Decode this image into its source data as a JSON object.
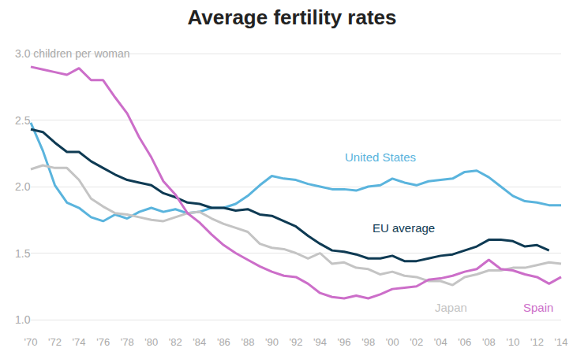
{
  "chart_data": {
    "type": "line",
    "title": "Average fertility rates",
    "categories": [
      "'70",
      null,
      "'72",
      null,
      "'74",
      null,
      "'76",
      null,
      "'78",
      null,
      "'80",
      null,
      "'82",
      null,
      "'84",
      null,
      "'86",
      null,
      "'88",
      null,
      "'90",
      null,
      "'92",
      null,
      "'94",
      null,
      "'96",
      null,
      "'98",
      null,
      "'00",
      null,
      "'02",
      null,
      "'04",
      null,
      "'06",
      null,
      "'08",
      null,
      "'10",
      null,
      "'12",
      null,
      "'14"
    ],
    "series": [
      {
        "name": "United States",
        "color": "#5ab4dd",
        "values": [
          2.48,
          2.27,
          2.01,
          1.88,
          1.84,
          1.77,
          1.74,
          1.79,
          1.76,
          1.81,
          1.84,
          1.81,
          1.83,
          1.8,
          1.81,
          1.84,
          1.84,
          1.87,
          1.93,
          2.01,
          2.08,
          2.06,
          2.05,
          2.02,
          2.0,
          1.98,
          1.98,
          1.97,
          2.0,
          2.01,
          2.06,
          2.03,
          2.01,
          2.04,
          2.05,
          2.06,
          2.11,
          2.12,
          2.07,
          2.0,
          1.93,
          1.89,
          1.88,
          1.86,
          1.86
        ]
      },
      {
        "name": "EU average",
        "color": "#0e3a53",
        "values": [
          2.43,
          2.41,
          2.33,
          2.26,
          2.26,
          2.19,
          2.14,
          2.09,
          2.05,
          2.03,
          2.01,
          1.95,
          1.92,
          1.88,
          1.87,
          1.84,
          1.84,
          1.82,
          1.83,
          1.79,
          1.78,
          1.74,
          1.7,
          1.63,
          1.57,
          1.52,
          1.51,
          1.49,
          1.46,
          1.46,
          1.48,
          1.44,
          1.44,
          1.46,
          1.48,
          1.49,
          1.52,
          1.55,
          1.6,
          1.6,
          1.59,
          1.55,
          1.56,
          1.52,
          null
        ]
      },
      {
        "name": "Japan",
        "color": "#c4c4c4",
        "values": [
          2.13,
          2.16,
          2.14,
          2.14,
          2.05,
          1.91,
          1.85,
          1.8,
          1.79,
          1.77,
          1.75,
          1.74,
          1.77,
          1.8,
          1.81,
          1.76,
          1.72,
          1.69,
          1.66,
          1.57,
          1.54,
          1.53,
          1.5,
          1.46,
          1.5,
          1.42,
          1.43,
          1.39,
          1.38,
          1.34,
          1.36,
          1.33,
          1.32,
          1.29,
          1.29,
          1.26,
          1.32,
          1.34,
          1.37,
          1.37,
          1.39,
          1.39,
          1.41,
          1.43,
          1.42
        ]
      },
      {
        "name": "Spain",
        "color": "#cc6ec9",
        "values": [
          2.9,
          2.88,
          2.86,
          2.84,
          2.89,
          2.8,
          2.8,
          2.67,
          2.55,
          2.37,
          2.22,
          2.04,
          1.94,
          1.8,
          1.73,
          1.64,
          1.56,
          1.5,
          1.45,
          1.4,
          1.36,
          1.33,
          1.32,
          1.27,
          1.2,
          1.17,
          1.16,
          1.18,
          1.16,
          1.19,
          1.23,
          1.24,
          1.25,
          1.3,
          1.31,
          1.33,
          1.36,
          1.38,
          1.45,
          1.38,
          1.37,
          1.34,
          1.32,
          1.27,
          1.32
        ]
      }
    ],
    "ylim": [
      1.0,
      3.0
    ],
    "yticks": [
      {
        "value": 1.0,
        "label": "1.0"
      },
      1.5,
      {
        "value": 2.0,
        "label": "2.0"
      },
      2.5,
      {
        "value": 3.0,
        "label": "3.0 children per woman"
      }
    ],
    "grid": true
  }
}
